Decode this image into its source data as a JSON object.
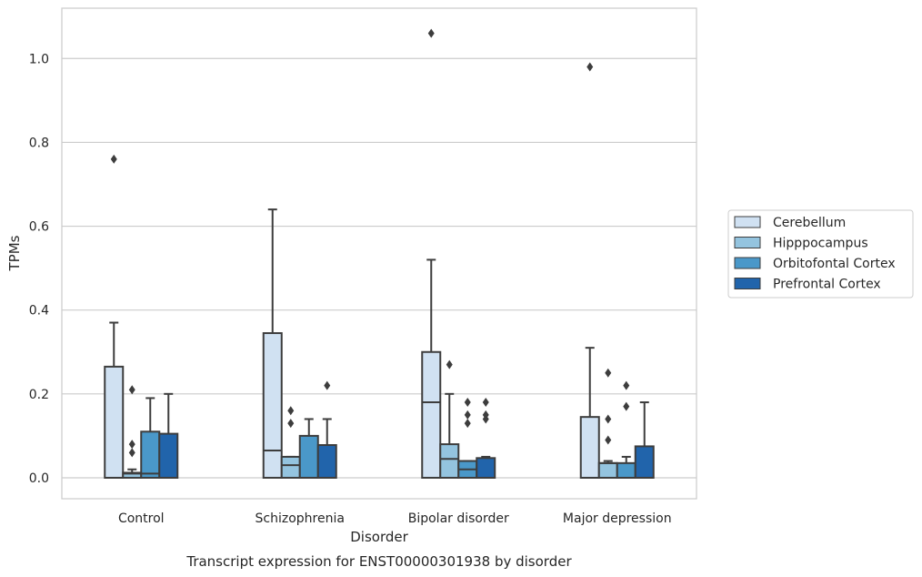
{
  "caption": "Transcript expression for ENST00000301938 by disorder",
  "colors": {
    "Cerebellum": "#d0e1f2",
    "Hipppocampus": "#94c4df",
    "Orbitofontal Cortex": "#4a98c9",
    "Prefrontal Cortex": "#2164ab",
    "grid": "#cccccc",
    "frame": "#cccccc",
    "box_edge": "#3d3d3d"
  },
  "chart_data": {
    "type": "box",
    "xlabel": "Disorder",
    "ylabel": "TPMs",
    "ylim": [
      -0.05,
      1.12
    ],
    "yticks": [
      0.0,
      0.2,
      0.4,
      0.6,
      0.8,
      1.0
    ],
    "ytick_labels": [
      "0.0",
      "0.2",
      "0.4",
      "0.6",
      "0.8",
      "1.0"
    ],
    "grid": "horizontal",
    "legend_position": "right",
    "categories": [
      "Control",
      "Schizophrenia",
      "Bipolar disorder",
      "Major depression"
    ],
    "series": [
      {
        "name": "Cerebellum",
        "boxes": [
          {
            "q1": 0.0,
            "median": 0.0,
            "q3": 0.265,
            "whisker_low": 0.0,
            "whisker_high": 0.37,
            "outliers": [
              0.76
            ]
          },
          {
            "q1": 0.0,
            "median": 0.065,
            "q3": 0.345,
            "whisker_low": 0.0,
            "whisker_high": 0.64,
            "outliers": []
          },
          {
            "q1": 0.0,
            "median": 0.18,
            "q3": 0.3,
            "whisker_low": 0.0,
            "whisker_high": 0.52,
            "outliers": [
              1.06
            ]
          },
          {
            "q1": 0.0,
            "median": 0.0,
            "q3": 0.145,
            "whisker_low": 0.0,
            "whisker_high": 0.31,
            "outliers": [
              0.98
            ]
          }
        ]
      },
      {
        "name": "Hipppocampus",
        "boxes": [
          {
            "q1": 0.0,
            "median": 0.01,
            "q3": 0.012,
            "whisker_low": 0.0,
            "whisker_high": 0.02,
            "outliers": [
              0.06,
              0.08,
              0.21
            ]
          },
          {
            "q1": 0.0,
            "median": 0.03,
            "q3": 0.05,
            "whisker_low": 0.0,
            "whisker_high": 0.05,
            "outliers": [
              0.13,
              0.16
            ]
          },
          {
            "q1": 0.0,
            "median": 0.045,
            "q3": 0.08,
            "whisker_low": 0.0,
            "whisker_high": 0.2,
            "outliers": [
              0.27
            ]
          },
          {
            "q1": 0.0,
            "median": 0.035,
            "q3": 0.035,
            "whisker_low": 0.0,
            "whisker_high": 0.04,
            "outliers": [
              0.09,
              0.14,
              0.25
            ]
          }
        ]
      },
      {
        "name": "Orbitofontal Cortex",
        "boxes": [
          {
            "q1": 0.0,
            "median": 0.01,
            "q3": 0.11,
            "whisker_low": 0.0,
            "whisker_high": 0.19,
            "outliers": []
          },
          {
            "q1": 0.0,
            "median": 0.0,
            "q3": 0.1,
            "whisker_low": 0.0,
            "whisker_high": 0.14,
            "outliers": []
          },
          {
            "q1": 0.0,
            "median": 0.02,
            "q3": 0.04,
            "whisker_low": 0.0,
            "whisker_high": 0.04,
            "outliers": [
              0.13,
              0.15,
              0.18
            ]
          },
          {
            "q1": 0.0,
            "median": 0.0,
            "q3": 0.035,
            "whisker_low": 0.0,
            "whisker_high": 0.05,
            "outliers": [
              0.17,
              0.22
            ]
          }
        ]
      },
      {
        "name": "Prefrontal Cortex",
        "boxes": [
          {
            "q1": 0.0,
            "median": 0.0,
            "q3": 0.105,
            "whisker_low": 0.0,
            "whisker_high": 0.2,
            "outliers": []
          },
          {
            "q1": 0.0,
            "median": 0.0,
            "q3": 0.078,
            "whisker_low": 0.0,
            "whisker_high": 0.14,
            "outliers": [
              0.22
            ]
          },
          {
            "q1": 0.0,
            "median": 0.0,
            "q3": 0.047,
            "whisker_low": 0.0,
            "whisker_high": 0.05,
            "outliers": [
              0.14,
              0.15,
              0.18
            ]
          },
          {
            "q1": 0.0,
            "median": 0.0,
            "q3": 0.075,
            "whisker_low": 0.0,
            "whisker_high": 0.18,
            "outliers": []
          }
        ]
      }
    ]
  }
}
